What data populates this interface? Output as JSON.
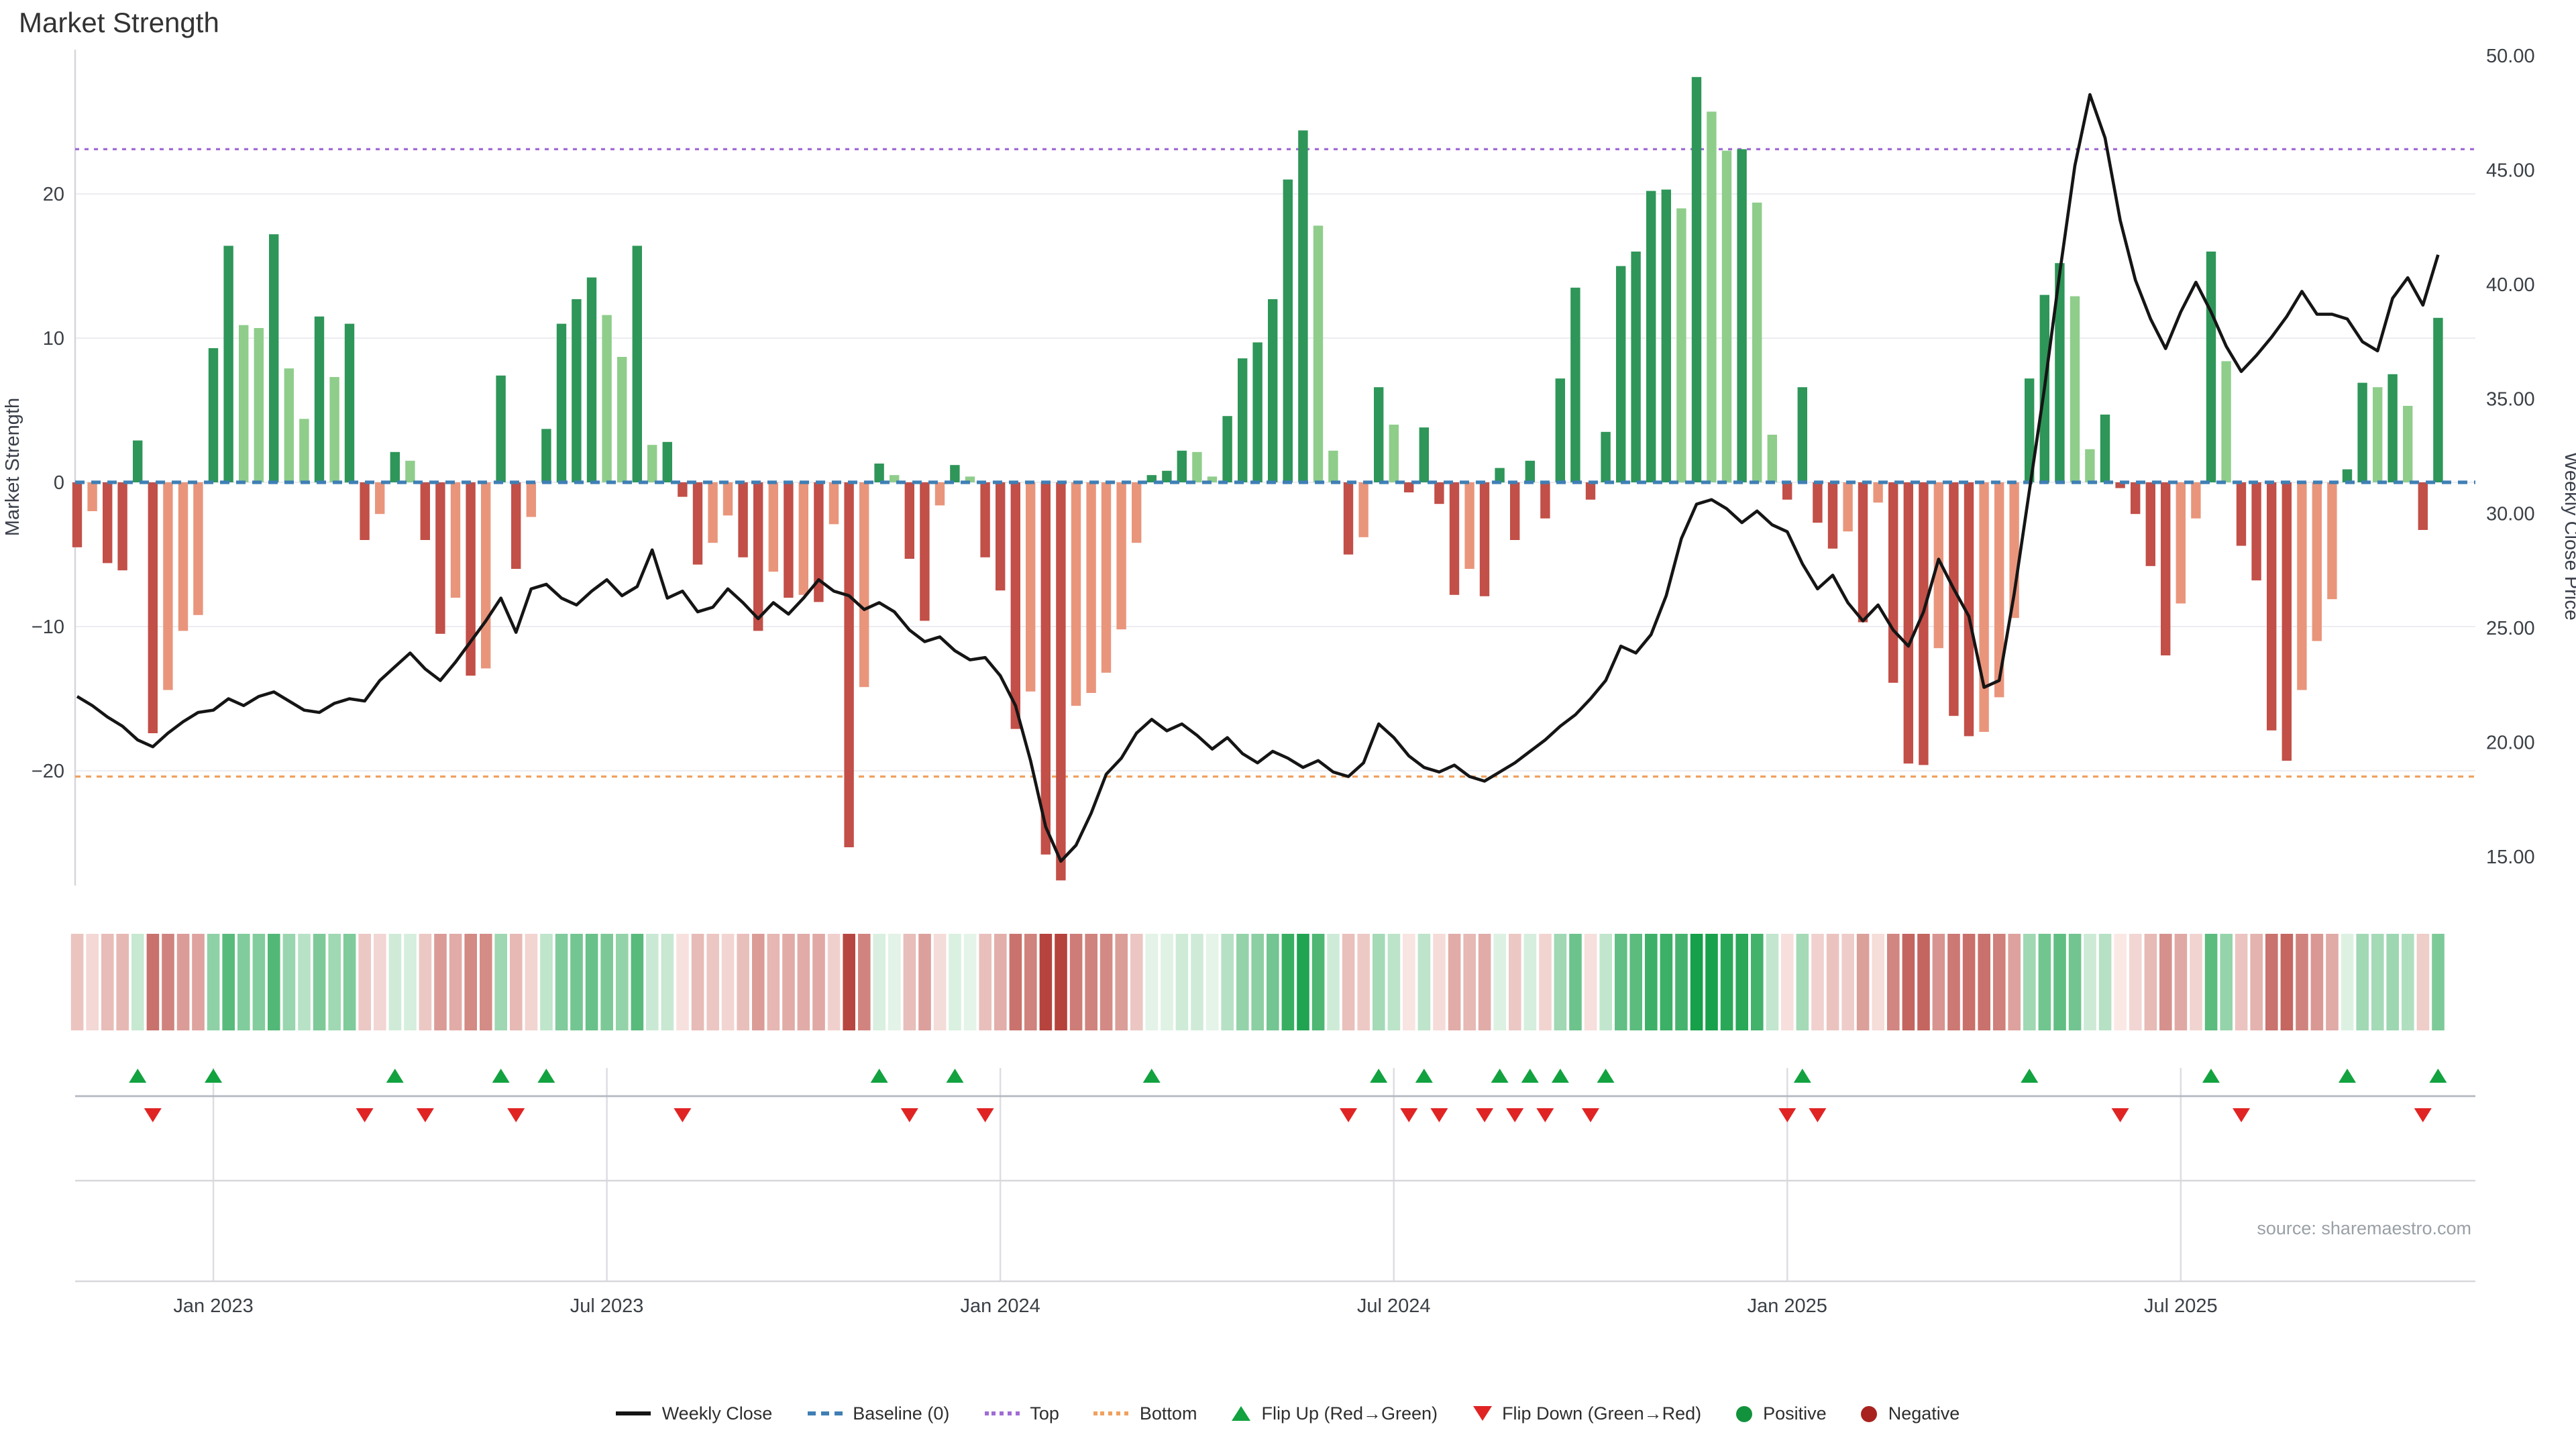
{
  "title": "Market Strength",
  "source": "source: sharemaestro.com",
  "axes": {
    "left_label": "Market Strength",
    "right_label": "Weekly Close Price",
    "left_ticks": [
      {
        "label": "20",
        "value": 20
      },
      {
        "label": "10",
        "value": 10
      },
      {
        "label": "0",
        "value": 0
      },
      {
        "label": "−10",
        "value": -10
      },
      {
        "label": "−20",
        "value": -20
      }
    ],
    "right_ticks": [
      {
        "label": "50.00",
        "value": 50
      },
      {
        "label": "45.00",
        "value": 45
      },
      {
        "label": "40.00",
        "value": 40
      },
      {
        "label": "35.00",
        "value": 35
      },
      {
        "label": "30.00",
        "value": 30
      },
      {
        "label": "25.00",
        "value": 25
      },
      {
        "label": "20.00",
        "value": 20
      },
      {
        "label": "15.00",
        "value": 15
      }
    ],
    "x_ticks": [
      {
        "label": "Jan 2023",
        "week": 9
      },
      {
        "label": "Jul 2023",
        "week": 35
      },
      {
        "label": "Jan 2024",
        "week": 61
      },
      {
        "label": "Jul 2024",
        "week": 87
      },
      {
        "label": "Jan 2025",
        "week": 113
      },
      {
        "label": "Jul 2025",
        "week": 139
      }
    ]
  },
  "legend": {
    "items": [
      {
        "label": "Weekly Close",
        "swatch": "line"
      },
      {
        "label": "Baseline (0)",
        "swatch": "dash"
      },
      {
        "label": "Top",
        "swatch": "dot-purple"
      },
      {
        "label": "Bottom",
        "swatch": "dot-orange"
      },
      {
        "label": "Flip Up (Red→Green)",
        "swatch": "tri-up"
      },
      {
        "label": "Flip Down (Green→Red)",
        "swatch": "tri-down"
      },
      {
        "label": "Positive",
        "swatch": "dot-pos"
      },
      {
        "label": "Negative",
        "swatch": "dot-neg"
      }
    ]
  },
  "chart_data": {
    "type": "bar",
    "subtype": "weekly bar + line combo with heatmap strip and flip markers",
    "title": "Market Strength",
    "xlabel": "",
    "ylabel_left": "Market Strength",
    "ylabel_right": "Weekly Close Price",
    "x_unit": "weeks (Oct 2022 - Oct 2025)",
    "n_weeks": 157,
    "ylim_left": [
      -29.5,
      30.3
    ],
    "ylim_right_ticks": [
      15,
      50
    ],
    "grid": "horizontal, left axis ticks only",
    "legend_position": "bottom center",
    "baseline": {
      "value": 0,
      "color": "#3f7fb5",
      "style": "dashed"
    },
    "top_threshold": {
      "value": 23.1,
      "color": "#a06cd5",
      "style": "dotted"
    },
    "bottom_threshold": {
      "value": -20.4,
      "color": "#f0a160",
      "style": "dotted"
    },
    "series": [
      {
        "name": "Market Strength",
        "type": "bar",
        "values": [
          -4.5,
          -2,
          -5.6,
          -6.1,
          2.9,
          -17.4,
          -14.4,
          -10.3,
          -9.2,
          9.3,
          16.4,
          10.9,
          10.7,
          17.2,
          7.9,
          4.4,
          11.5,
          7.3,
          11,
          -4,
          -2.2,
          2.1,
          1.5,
          -4,
          -10.5,
          -8,
          -13.4,
          -12.9,
          7.4,
          -6,
          -2.4,
          3.7,
          11,
          12.7,
          14.2,
          11.6,
          8.7,
          16.4,
          2.6,
          2.8,
          -1,
          -5.7,
          -4.2,
          -2.3,
          -5.2,
          -10.3,
          -6.2,
          -8,
          -7.8,
          -8.3,
          -2.9,
          -25.3,
          -14.2,
          1.3,
          0.5,
          -5.3,
          -9.6,
          -1.6,
          1.2,
          0.4,
          -5.2,
          -7.5,
          -17.1,
          -14.5,
          -25.8,
          -27.6,
          -15.5,
          -14.6,
          -13.2,
          -10.2,
          -4.2,
          0.5,
          0.8,
          2.2,
          2.1,
          0.4,
          4.6,
          8.6,
          9.7,
          12.7,
          21,
          24.4,
          17.8,
          2.2,
          -5,
          -3.8,
          6.6,
          4,
          -0.7,
          3.8,
          -1.5,
          -7.8,
          -6,
          -7.9,
          1,
          -4,
          1.5,
          -2.5,
          7.2,
          13.5,
          -1.2,
          3.5,
          15,
          16,
          20.2,
          20.3,
          19,
          28.1,
          25.7,
          23,
          23.1,
          19.4,
          3.3,
          -1.2,
          6.6,
          -2.8,
          -4.6,
          -3.4,
          -9.7,
          -1.4,
          -13.9,
          -19.5,
          -19.6,
          -11.5,
          -16.2,
          -17.6,
          -17.3,
          -14.9,
          -9.4,
          7.2,
          13,
          15.2,
          12.9,
          2.3,
          4.7,
          -0.4,
          -2.2,
          -5.8,
          -12,
          -8.4,
          -2.5,
          16,
          8.4,
          -4.4,
          -6.8,
          -17.2,
          -19.3,
          -14.4,
          -11,
          -8.1,
          0.9,
          6.9,
          6.6,
          7.5,
          5.3,
          -3.3,
          11.4
        ],
        "colors": {
          "positive_dark": "#2e9658",
          "positive_light": "#8fcd8b",
          "negative_dark": "#c24f48",
          "negative_light": "#e9957c"
        },
        "shade_rule": "dark when |value| >= |previous| or sign flips, light otherwise"
      },
      {
        "name": "Weekly Close",
        "type": "line",
        "color": "#151515",
        "values": [
          22,
          21.6,
          21.1,
          20.7,
          20.1,
          19.8,
          20.4,
          20.9,
          21.3,
          21.4,
          21.9,
          21.6,
          22,
          22.2,
          21.8,
          21.4,
          21.3,
          21.7,
          21.9,
          21.8,
          22.7,
          23.3,
          23.9,
          23.2,
          22.7,
          23.5,
          24.4,
          25.3,
          26.3,
          24.8,
          26.7,
          26.9,
          26.3,
          26,
          26.6,
          27.1,
          26.4,
          26.8,
          28.4,
          26.3,
          26.6,
          25.7,
          25.9,
          26.7,
          26.1,
          25.4,
          26.1,
          25.6,
          26.3,
          27.1,
          26.6,
          26.4,
          25.8,
          26.1,
          25.7,
          24.9,
          24.4,
          24.6,
          24,
          23.6,
          23.7,
          22.9,
          21.6,
          19.2,
          16.3,
          14.8,
          15.5,
          16.9,
          18.6,
          19.3,
          20.4,
          21,
          20.5,
          20.8,
          20.3,
          19.7,
          20.2,
          19.5,
          19.1,
          19.6,
          19.3,
          18.9,
          19.2,
          18.7,
          18.5,
          19.1,
          20.8,
          20.2,
          19.4,
          18.9,
          18.7,
          19,
          18.5,
          18.3,
          18.7,
          19.1,
          19.6,
          20.1,
          20.7,
          21.2,
          21.9,
          22.7,
          24.2,
          23.9,
          24.7,
          26.4,
          28.9,
          30.4,
          30.6,
          30.2,
          29.6,
          30.1,
          29.5,
          29.2,
          27.8,
          26.7,
          27.3,
          26.1,
          25.3,
          26,
          24.9,
          24.2,
          25.7,
          28,
          26.7,
          25.5,
          22.4,
          22.7,
          26.5,
          31,
          35.5,
          40.5,
          45.2,
          48.3,
          46.4,
          42.8,
          40.2,
          38.5,
          37.2,
          38.8,
          40.1,
          38.8,
          37.3,
          36.2,
          36.9,
          37.7,
          38.6,
          39.7,
          38.7,
          38.7,
          38.5,
          37.5,
          37.1,
          39.4,
          40.3,
          39.1,
          41.3
        ]
      }
    ],
    "heatmap_strip": {
      "description": "diverging red-green cells mirroring Market Strength bar values",
      "max_abs": 26,
      "deep_green": "#16a049",
      "deep_red": "#b6423c"
    },
    "markers": {
      "flip_up_weeks": [
        4,
        9,
        21,
        28,
        31,
        53,
        58,
        71,
        86,
        89,
        94,
        96,
        98,
        101,
        114,
        129,
        141,
        150,
        156
      ],
      "flip_down_weeks": [
        5,
        19,
        23,
        29,
        40,
        55,
        60,
        84,
        88,
        90,
        93,
        95,
        97,
        100,
        113,
        115,
        135,
        143,
        155
      ],
      "flip_up_color": "#12a23f",
      "flip_down_color": "#e02424"
    }
  }
}
